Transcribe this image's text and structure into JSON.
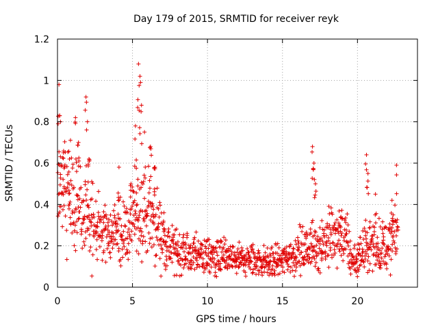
{
  "chart_data": {
    "type": "scatter",
    "title": "Day 179 of 2015, SRMTID for receiver reyk",
    "xlabel": "GPS time / hours",
    "ylabel": "SRMTID / TECUs",
    "xlim": [
      0,
      24
    ],
    "ylim": [
      0,
      1.2
    ],
    "xticks": [
      0,
      5,
      10,
      15,
      20
    ],
    "xtick_labels": [
      "0",
      "5",
      "10",
      "15",
      "20"
    ],
    "yticks": [
      0,
      0.2,
      0.4,
      0.6,
      0.8,
      1,
      1.2
    ],
    "ytick_labels": [
      "0",
      "0.2",
      "0.4",
      "0.6",
      "0.8",
      "1",
      "1.2"
    ],
    "grid": true,
    "marker": "+",
    "marker_color": "#e00000",
    "series": [
      {
        "name": "SRMTID",
        "sample_step_hours": 0.05,
        "trend": [
          [
            0,
            0.45
          ],
          [
            0.5,
            0.46
          ],
          [
            1,
            0.42
          ],
          [
            1.5,
            0.38
          ],
          [
            2,
            0.33
          ],
          [
            2.5,
            0.28
          ],
          [
            3,
            0.26
          ],
          [
            3.5,
            0.26
          ],
          [
            4,
            0.27
          ],
          [
            4.5,
            0.27
          ],
          [
            5,
            0.3
          ],
          [
            5.5,
            0.36
          ],
          [
            6,
            0.35
          ],
          [
            6.5,
            0.32
          ],
          [
            7,
            0.24
          ],
          [
            7.5,
            0.19
          ],
          [
            8,
            0.17
          ],
          [
            9,
            0.16
          ],
          [
            10,
            0.15
          ],
          [
            11,
            0.14
          ],
          [
            12,
            0.13
          ],
          [
            13,
            0.13
          ],
          [
            14,
            0.12
          ],
          [
            15,
            0.13
          ],
          [
            15.5,
            0.15
          ],
          [
            16,
            0.17
          ],
          [
            16.5,
            0.18
          ],
          [
            17,
            0.2
          ],
          [
            17.5,
            0.21
          ],
          [
            18,
            0.23
          ],
          [
            18.5,
            0.24
          ],
          [
            19,
            0.25
          ],
          [
            19.3,
            0.2
          ],
          [
            19.6,
            0.13
          ],
          [
            20,
            0.14
          ],
          [
            20.5,
            0.19
          ],
          [
            21,
            0.21
          ],
          [
            21.5,
            0.2
          ],
          [
            22,
            0.2
          ],
          [
            22.5,
            0.25
          ],
          [
            22.7,
            0.3
          ]
        ],
        "spread_fraction": 0.3,
        "peaks": [
          [
            0.1,
            0.98
          ],
          [
            0.2,
            0.8
          ],
          [
            0.4,
            0.65
          ],
          [
            0.8,
            0.62
          ],
          [
            1.2,
            0.82
          ],
          [
            1.4,
            0.7
          ],
          [
            1.9,
            0.92
          ],
          [
            2.0,
            0.8
          ],
          [
            2.1,
            0.62
          ],
          [
            4.1,
            0.58
          ],
          [
            4.9,
            0.5
          ],
          [
            5.2,
            0.78
          ],
          [
            5.4,
            1.08
          ],
          [
            5.5,
            1.02
          ],
          [
            5.6,
            0.88
          ],
          [
            5.8,
            0.75
          ],
          [
            6.2,
            0.68
          ],
          [
            6.5,
            0.58
          ],
          [
            7.1,
            0.36
          ],
          [
            17.0,
            0.68
          ],
          [
            17.1,
            0.6
          ],
          [
            17.2,
            0.5
          ],
          [
            18.9,
            0.34
          ],
          [
            20.6,
            0.64
          ],
          [
            20.7,
            0.55
          ],
          [
            21.2,
            0.45
          ],
          [
            22.3,
            0.42
          ],
          [
            22.6,
            0.59
          ]
        ]
      }
    ]
  }
}
